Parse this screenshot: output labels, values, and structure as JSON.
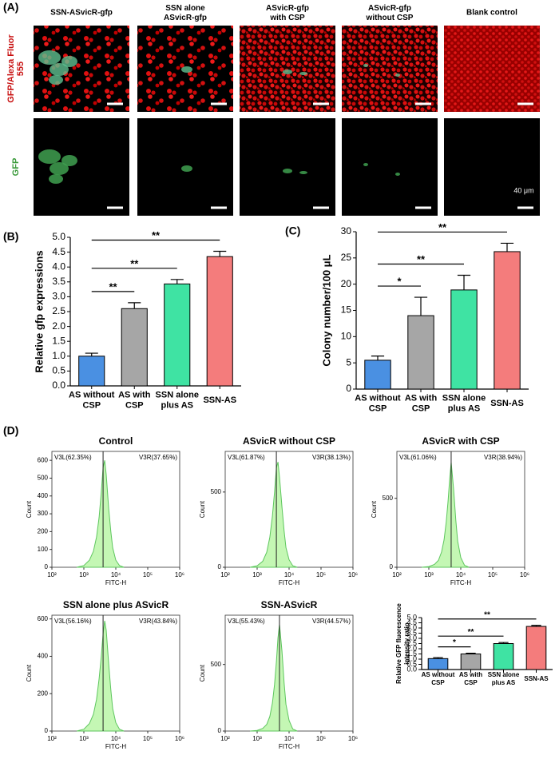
{
  "panel_a": {
    "label": "(A)",
    "columns": [
      "SSN-ASvicR-gfp",
      "SSN alone\nASvicR-gfp",
      "ASvicR-gfp\nwith CSP",
      "ASvicR-gfp\nwithout CSP",
      "Blank control"
    ],
    "rows": [
      "GFP/Alexa Fluor\n555",
      "GFP"
    ],
    "scale_bar": "40 μm"
  },
  "panel_d": {
    "label": "(D)"
  },
  "chart_data": [
    {
      "type": "bar",
      "panel_label": "(B)",
      "ylabel": "Relative gfp expressions",
      "categories": [
        "AS without\nCSP",
        "AS with\nCSP",
        "SSN alone\nplus AS",
        "SSN-AS"
      ],
      "values": [
        1.0,
        2.6,
        3.43,
        4.35
      ],
      "errors": [
        0.1,
        0.2,
        0.15,
        0.18
      ],
      "colors": [
        "#4a90e2",
        "#a6a6a6",
        "#3fe3a3",
        "#f47c7c"
      ],
      "ylim": [
        0,
        5
      ],
      "yticks": [
        {
          "value": 0,
          "label": "0.0"
        },
        {
          "value": 0.5,
          "label": "0.5"
        },
        {
          "value": 1,
          "label": "1.0"
        },
        {
          "value": 1.5,
          "label": "1.5"
        },
        {
          "value": 2,
          "label": "2.0"
        },
        {
          "value": 2.5,
          "label": "2.5"
        },
        {
          "value": 3,
          "label": "3.0"
        },
        {
          "value": 3.5,
          "label": "3.5"
        },
        {
          "value": 4,
          "label": "4.0"
        },
        {
          "value": 4.5,
          "label": "4.5"
        },
        {
          "value": 5,
          "label": "5.0"
        }
      ],
      "significance": [
        {
          "from": 0,
          "to": 1,
          "label": "**"
        },
        {
          "from": 0,
          "to": 2,
          "label": "**"
        },
        {
          "from": 0,
          "to": 3,
          "label": "**"
        }
      ]
    },
    {
      "type": "bar",
      "panel_label": "(C)",
      "ylabel": "Colony number/100 μL",
      "categories": [
        "AS without\nCSP",
        "AS with\nCSP",
        "SSN alone\nplus AS",
        "SSN-AS"
      ],
      "values": [
        5.5,
        14,
        18.9,
        26.2
      ],
      "errors": [
        0.8,
        3.5,
        2.8,
        1.6
      ],
      "colors": [
        "#4a90e2",
        "#a6a6a6",
        "#3fe3a3",
        "#f47c7c"
      ],
      "ylim": [
        0,
        30
      ],
      "yticks": [
        0,
        5,
        10,
        15,
        20,
        25,
        30
      ],
      "significance": [
        {
          "from": 0,
          "to": 1,
          "label": "*"
        },
        {
          "from": 0,
          "to": 2,
          "label": "**"
        },
        {
          "from": 0,
          "to": 3,
          "label": "**"
        }
      ]
    },
    {
      "type": "area",
      "title": "Control",
      "xlabel": "FITC-H",
      "ylabel": "Count",
      "log_x": true,
      "color": "#5ec65e",
      "x": [
        600,
        1000,
        1500,
        2000,
        2500,
        3000,
        3500,
        4000,
        4500,
        5000,
        6000,
        7000,
        8000,
        10000,
        13000,
        18000
      ],
      "values": [
        0,
        10,
        40,
        90,
        170,
        280,
        420,
        560,
        600,
        520,
        330,
        200,
        110,
        40,
        10,
        0
      ],
      "xlim": [
        100,
        1000000
      ],
      "xticks": [
        {
          "value": 100,
          "label": "10²"
        },
        {
          "value": 1000,
          "label": "10³"
        },
        {
          "value": 10000,
          "label": "10⁴"
        },
        {
          "value": 100000,
          "label": "10⁵"
        },
        {
          "value": 1000000,
          "label": "10⁶"
        }
      ],
      "ylim": [
        0,
        650
      ],
      "yticks": [
        0,
        100,
        200,
        300,
        400,
        500,
        600
      ],
      "gate": 4000,
      "gate_labels": [
        "V3L(62.35%)",
        "V3R(37.65%)"
      ]
    },
    {
      "type": "area",
      "title": "ASvicR without CSP",
      "xlabel": "FITC-H",
      "ylabel": "Count",
      "log_x": true,
      "color": "#5ec65e",
      "x": [
        600,
        1000,
        1500,
        2000,
        2500,
        3000,
        3500,
        4000,
        4500,
        5000,
        6000,
        7000,
        8000,
        10000,
        13000,
        18000
      ],
      "values": [
        0,
        10,
        40,
        100,
        200,
        340,
        500,
        660,
        700,
        600,
        400,
        240,
        130,
        50,
        10,
        0
      ],
      "xlim": [
        100,
        1000000
      ],
      "xticks": [
        {
          "value": 100,
          "label": "10²"
        },
        {
          "value": 1000,
          "label": "10³"
        },
        {
          "value": 10000,
          "label": "10⁴"
        },
        {
          "value": 100000,
          "label": "10⁵"
        },
        {
          "value": 1000000,
          "label": "10⁶"
        }
      ],
      "ylim": [
        0,
        770
      ],
      "yticks": [
        0,
        500
      ],
      "gate": 4000,
      "gate_labels": [
        "V3L(61.87%)",
        "V3R(38.13%)"
      ]
    },
    {
      "type": "area",
      "title": "ASvicR with CSP",
      "xlabel": "FITC-H",
      "ylabel": "Count",
      "log_x": true,
      "color": "#5ec65e",
      "x": [
        600,
        1000,
        1500,
        2000,
        2500,
        3000,
        3500,
        4000,
        4500,
        5000,
        6000,
        7000,
        8000,
        10000,
        13000,
        18000
      ],
      "values": [
        0,
        5,
        20,
        50,
        110,
        200,
        330,
        480,
        640,
        760,
        560,
        340,
        190,
        70,
        15,
        0
      ],
      "xlim": [
        100,
        1000000
      ],
      "xticks": [
        {
          "value": 100,
          "label": "10²"
        },
        {
          "value": 1000,
          "label": "10³"
        },
        {
          "value": 10000,
          "label": "10⁴"
        },
        {
          "value": 100000,
          "label": "10⁵"
        },
        {
          "value": 1000000,
          "label": "10⁶"
        }
      ],
      "ylim": [
        0,
        840
      ],
      "yticks": [
        0,
        500
      ],
      "gate": 5000,
      "gate_labels": [
        "V3L(61.06%)",
        "V3R(38.94%)"
      ]
    },
    {
      "type": "area",
      "title": "SSN alone plus ASvicR",
      "xlabel": "FITC-H",
      "ylabel": "Count",
      "log_x": true,
      "color": "#5ec65e",
      "x": [
        600,
        1000,
        1500,
        2000,
        2500,
        3000,
        3500,
        4000,
        4500,
        5000,
        6000,
        7000,
        8000,
        10000,
        13000,
        18000
      ],
      "values": [
        0,
        10,
        40,
        90,
        170,
        280,
        400,
        520,
        590,
        540,
        360,
        220,
        120,
        45,
        10,
        0
      ],
      "xlim": [
        100,
        1000000
      ],
      "xticks": [
        {
          "value": 100,
          "label": "10²"
        },
        {
          "value": 1000,
          "label": "10³"
        },
        {
          "value": 10000,
          "label": "10⁴"
        },
        {
          "value": 100000,
          "label": "10⁵"
        },
        {
          "value": 1000000,
          "label": "10⁶"
        }
      ],
      "ylim": [
        0,
        620
      ],
      "yticks": [
        0,
        200,
        400,
        600
      ],
      "gate": 4000,
      "gate_labels": [
        "V3L(56.16%)",
        "V3R(43.84%)"
      ]
    },
    {
      "type": "area",
      "title": "SSN-ASvicR",
      "xlabel": "FITC-H",
      "ylabel": "Count",
      "log_x": true,
      "color": "#5ec65e",
      "x": [
        600,
        1000,
        1500,
        2000,
        2500,
        3000,
        3500,
        4000,
        4500,
        5000,
        6000,
        7000,
        8000,
        10000,
        13000,
        18000
      ],
      "values": [
        0,
        5,
        20,
        50,
        110,
        210,
        350,
        520,
        700,
        800,
        600,
        360,
        200,
        80,
        15,
        0
      ],
      "xlim": [
        100,
        1000000
      ],
      "xticks": [
        {
          "value": 100,
          "label": "10²"
        },
        {
          "value": 1000,
          "label": "10³"
        },
        {
          "value": 10000,
          "label": "10⁴"
        },
        {
          "value": 100000,
          "label": "10⁵"
        },
        {
          "value": 1000000,
          "label": "10⁶"
        }
      ],
      "ylim": [
        0,
        870
      ],
      "yticks": [
        0,
        500
      ],
      "gate": 5000,
      "gate_labels": [
        "V3L(55.43%)",
        "V3R(44.57%)"
      ]
    },
    {
      "type": "bar",
      "ylabel": "Relative GFP fluorescence\nintensity ratio",
      "categories": [
        "AS without\nCSP",
        "AS with\nCSP",
        "SSN alone\nplus AS",
        "SSN-AS"
      ],
      "values": [
        1.05,
        1.5,
        2.5,
        4.15
      ],
      "errors": [
        0.1,
        0.07,
        0.1,
        0.1
      ],
      "colors": [
        "#4a90e2",
        "#a6a6a6",
        "#3fe3a3",
        "#f47c7c"
      ],
      "ylim": [
        0,
        5
      ],
      "yticks": [
        {
          "value": 0,
          "label": "0.0"
        },
        {
          "value": 0.5,
          "label": "0.5"
        },
        {
          "value": 1,
          "label": "1.0"
        },
        {
          "value": 1.5,
          "label": "1.5"
        },
        {
          "value": 2,
          "label": "2.0"
        },
        {
          "value": 2.5,
          "label": "2.5"
        },
        {
          "value": 3,
          "label": "3.0"
        },
        {
          "value": 3.5,
          "label": "3.5"
        },
        {
          "value": 4,
          "label": "4.0"
        },
        {
          "value": 4.5,
          "label": "4.5"
        },
        {
          "value": 5,
          "label": "5.0"
        }
      ],
      "significance": [
        {
          "from": 0,
          "to": 1,
          "label": "*"
        },
        {
          "from": 0,
          "to": 2,
          "label": "**"
        },
        {
          "from": 0,
          "to": 3,
          "label": "**"
        }
      ]
    }
  ]
}
